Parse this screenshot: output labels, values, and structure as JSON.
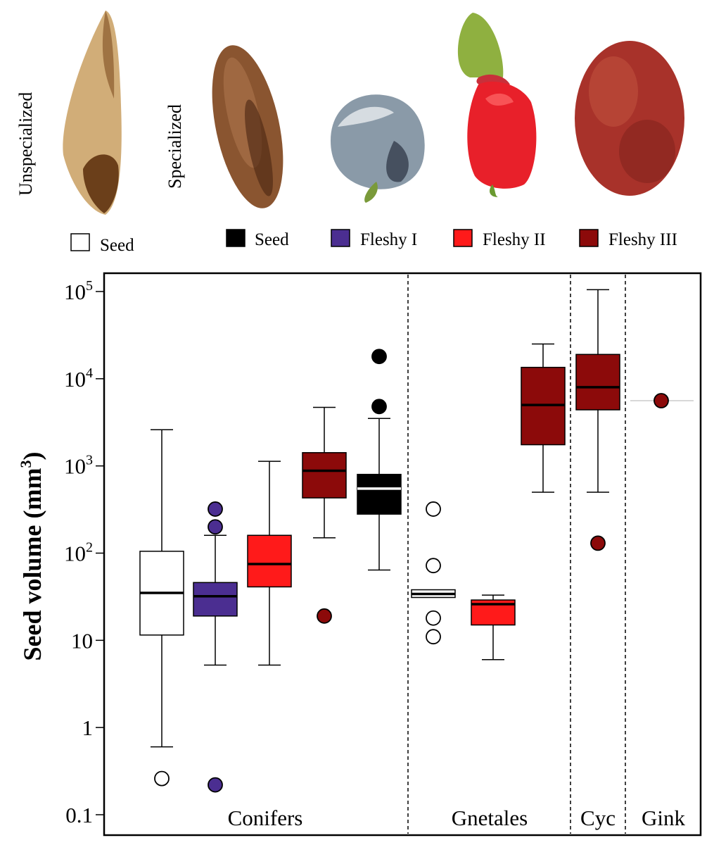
{
  "photo_labels": {
    "unspecialized": "Unspecialized",
    "specialized": "Specialized"
  },
  "legend": [
    {
      "label": "Seed",
      "color": "#ffffff"
    },
    {
      "label": "Seed",
      "color": "#000000"
    },
    {
      "label": "Fleshy I",
      "color": "#4b2e91"
    },
    {
      "label": "Fleshy II",
      "color": "#ff1a1a"
    },
    {
      "label": "Fleshy III",
      "color": "#8c0a0a"
    }
  ],
  "photos": [
    {
      "name": "unspecialized-seed-photo",
      "fill": "#c9a066",
      "dark": "#6b3f1a"
    },
    {
      "name": "specialized-seed-photo",
      "fill": "#8a5530",
      "dark": "#4a2410"
    },
    {
      "name": "fleshy-i-photo",
      "fill": "#8a9aa8",
      "dark": "#2a3040"
    },
    {
      "name": "fleshy-ii-photo",
      "fill": "#e8202a",
      "dark": "#8fb040"
    },
    {
      "name": "fleshy-iii-photo",
      "fill": "#a8322a",
      "dark": "#6a1a14"
    }
  ],
  "chart_data": {
    "type": "box",
    "title": "",
    "xlabel": "",
    "ylabel": "Seed volume (mm3)",
    "ylabel_main": "Seed volume (mm",
    "ylabel_sup": "3",
    "ylabel_end": ")",
    "yscale": "log",
    "ylim": [
      0.1,
      100000
    ],
    "yticks": [
      {
        "value": 100000,
        "base": "10",
        "exp": "5"
      },
      {
        "value": 10000,
        "base": "10",
        "exp": "4"
      },
      {
        "value": 1000,
        "base": "10",
        "exp": "3"
      },
      {
        "value": 100,
        "base": "10",
        "exp": "2"
      },
      {
        "value": 10,
        "base": "10",
        "exp": ""
      },
      {
        "value": 1,
        "base": "1",
        "exp": ""
      },
      {
        "value": 0.1,
        "base": "0.1",
        "exp": ""
      }
    ],
    "groups": [
      {
        "label": "Conifers",
        "n_positions": 5
      },
      {
        "label": "Gnetales",
        "n_positions": 3
      },
      {
        "label": "Cyc",
        "n_positions": 1
      },
      {
        "label": "Gink",
        "n_positions": 1
      }
    ],
    "boxes": [
      {
        "group": "Conifers",
        "category": "Seed (unspecialized)",
        "fill": "#ffffff",
        "median_color": "#000000",
        "outlier_fill": "#ffffff",
        "whisker_low": 0.6,
        "q1": 11.5,
        "median": 35,
        "q3": 105,
        "whisker_high": 2600,
        "outliers": [
          0.26
        ]
      },
      {
        "group": "Conifers",
        "category": "Fleshy I",
        "fill": "#4b2e91",
        "median_color": "#000000",
        "outlier_fill": "#4b2e91",
        "whisker_low": 5.2,
        "q1": 19,
        "median": 32,
        "q3": 46,
        "whisker_high": 160,
        "outliers": [
          200,
          320,
          0.22
        ]
      },
      {
        "group": "Conifers",
        "category": "Fleshy II",
        "fill": "#ff1a1a",
        "median_color": "#000000",
        "outlier_fill": "#ff1a1a",
        "whisker_low": 5.2,
        "q1": 41,
        "median": 75,
        "q3": 160,
        "whisker_high": 1130,
        "outliers": []
      },
      {
        "group": "Conifers",
        "category": "Fleshy III",
        "fill": "#8c0a0a",
        "median_color": "#000000",
        "outlier_fill": "#8c0a0a",
        "whisker_low": 150,
        "q1": 430,
        "median": 880,
        "q3": 1420,
        "whisker_high": 4700,
        "outliers": [
          19
        ]
      },
      {
        "group": "Conifers",
        "category": "Seed (specialized)",
        "fill": "#000000",
        "median_color": "#ffffff",
        "outlier_fill": "#000000",
        "whisker_low": 64,
        "q1": 280,
        "median": 550,
        "q3": 800,
        "whisker_high": 3500,
        "outliers": [
          4800,
          18000
        ]
      },
      {
        "group": "Gnetales",
        "category": "Seed (unspecialized)",
        "fill": "#ffffff",
        "median_color": "#000000",
        "outlier_fill": "#ffffff",
        "whisker_low": null,
        "q1": 31,
        "median": 34,
        "q3": 38,
        "whisker_high": null,
        "outliers": [
          11,
          18,
          72,
          320
        ]
      },
      {
        "group": "Gnetales",
        "category": "Fleshy II",
        "fill": "#ff1a1a",
        "median_color": "#000000",
        "outlier_fill": "#ff1a1a",
        "whisker_low": 6,
        "q1": 15,
        "median": 26,
        "q3": 29,
        "whisker_high": 33,
        "outliers": []
      },
      {
        "group": "Gnetales",
        "category": "Fleshy III",
        "fill": "#8c0a0a",
        "median_color": "#000000",
        "outlier_fill": "#8c0a0a",
        "whisker_low": 500,
        "q1": 1750,
        "median": 5000,
        "q3": 13500,
        "whisker_high": 25000,
        "outliers": []
      },
      {
        "group": "Cyc",
        "category": "Fleshy III",
        "fill": "#8c0a0a",
        "median_color": "#000000",
        "outlier_fill": "#8c0a0a",
        "whisker_low": 500,
        "q1": 4400,
        "median": 8000,
        "q3": 19000,
        "whisker_high": 105000,
        "outliers": [
          130
        ]
      },
      {
        "group": "Gink",
        "category": "Fleshy III",
        "fill": "#8c0a0a",
        "median_color": "#cccccc",
        "outlier_fill": "#8c0a0a",
        "whisker_low": null,
        "q1": null,
        "median": 5600,
        "q3": null,
        "whisker_high": null,
        "outliers": [
          5600
        ]
      }
    ]
  }
}
